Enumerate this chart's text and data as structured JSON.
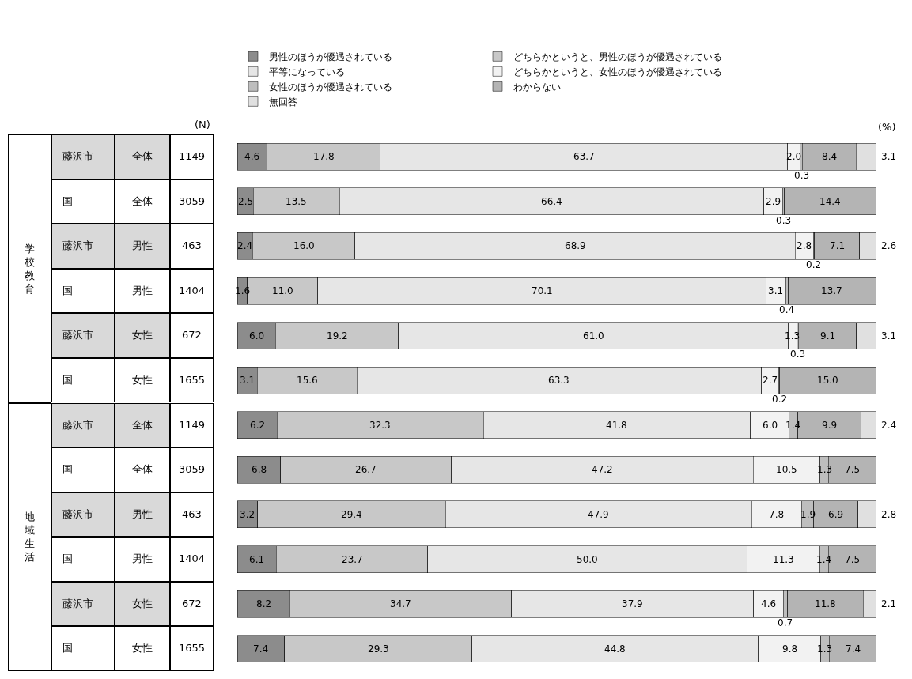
{
  "chart_data": {
    "type": "bar",
    "orientation": "horizontal",
    "stacked": true,
    "legend": "top",
    "tick_labels": "y",
    "grid": false,
    "xlim": [
      0,
      100
    ],
    "categories": [
      "藤沢市 全体",
      "国 全体",
      "藤沢市 男性",
      "国 男性",
      "藤沢市 女性",
      "国 女性",
      "藤沢市 全体",
      "国 全体",
      "藤沢市 男性",
      "国 男性",
      "藤沢市 女性",
      "国 女性"
    ],
    "annotations": [
      "学校教育",
      "地域生活",
      "(N)",
      "(%)",
      "1149",
      "3059",
      "463",
      "1404",
      "672",
      "1655",
      "1149",
      "3059",
      "463",
      "1404",
      "672",
      "1655"
    ],
    "series": [
      {
        "name": "男性のほうが優遇されている",
        "color": "#8c8c8c",
        "values": [
          4.6,
          2.5,
          2.4,
          1.6,
          6,
          3.1,
          6.2,
          6.8,
          3.2,
          6.1,
          8.2,
          7.4
        ],
        "value_labels": [
          "4.6",
          "2.5",
          "2.4",
          "1.6",
          "6.0",
          "3.1",
          "6.2",
          "6.8",
          "3.2",
          "6.1",
          "8.2",
          "7.4"
        ]
      },
      {
        "name": "どちらかというと、男性のほうが優遇されている",
        "color": "#c8c8c8",
        "values": [
          17.8,
          13.5,
          16,
          11,
          19.2,
          15.6,
          32.3,
          26.7,
          29.4,
          23.7,
          34.7,
          29.3
        ],
        "value_labels": [
          "17.8",
          "13.5",
          "16.0",
          "11.0",
          "19.2",
          "15.6",
          "32.3",
          "26.7",
          "29.4",
          "23.7",
          "34.7",
          "29.3"
        ]
      },
      {
        "name": "平等になっている",
        "color": "#e6e6e6",
        "values": [
          63.7,
          66.4,
          68.9,
          70.1,
          61,
          63.3,
          41.8,
          47.2,
          47.9,
          50,
          37.9,
          44.8
        ],
        "value_labels": [
          "63.7",
          "66.4",
          "68.9",
          "70.1",
          "61.0",
          "63.3",
          "41.8",
          "47.2",
          "47.9",
          "50.0",
          "37.9",
          "44.8"
        ]
      },
      {
        "name": "どちらかというと、女性のほうが優遇されている",
        "color": "#f2f2f2",
        "values": [
          2,
          2.9,
          2.8,
          3.1,
          1.3,
          2.7,
          6,
          10.5,
          7.8,
          11.3,
          4.6,
          9.8
        ],
        "value_labels": [
          "2.0",
          "2.9",
          "2.8",
          "3.1",
          "1.3",
          "2.7",
          "6.0",
          "10.5",
          "7.8",
          "11.3",
          "4.6",
          "9.8"
        ]
      },
      {
        "name": "女性のほうが優遇されている",
        "color": "#bebebe",
        "values": [
          0.3,
          0.3,
          0.2,
          0.4,
          0.3,
          0.2,
          1.4,
          1.3,
          1.9,
          1.4,
          0.7,
          1.3
        ],
        "value_labels": [
          "0.3",
          "0.3",
          "0.2",
          "0.4",
          "0.3",
          "0.2",
          "1.4",
          "1.3",
          "1.9",
          "1.4",
          "0.7",
          "1.3"
        ]
      },
      {
        "name": "わからない",
        "color": "#b4b4b4",
        "values": [
          8.4,
          14.4,
          7.1,
          13.7,
          9.1,
          15,
          9.9,
          7.5,
          6.9,
          7.5,
          11.8,
          7.4
        ],
        "value_labels": [
          "8.4",
          "14.4",
          "7.1",
          "13.7",
          "9.1",
          "15.0",
          "9.9",
          "7.5",
          "6.9",
          "7.5",
          "11.8",
          "7.4"
        ]
      },
      {
        "name": "無回答",
        "color": "#e0e0e0",
        "values": [
          3.1,
          null,
          2.6,
          null,
          3.1,
          null,
          2.4,
          null,
          2.8,
          null,
          2.1,
          null
        ],
        "value_labels": [
          "3.1",
          null,
          "2.6",
          null,
          "3.1",
          null,
          "2.4",
          null,
          "2.8",
          null,
          "2.1",
          null
        ]
      }
    ]
  }
}
